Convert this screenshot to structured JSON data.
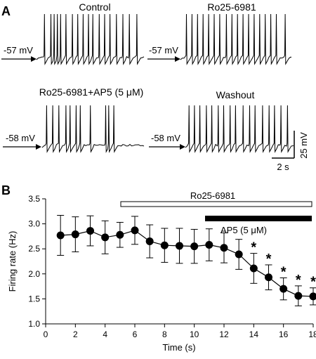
{
  "panel_a": {
    "letter": "A",
    "traces": [
      {
        "title": "Control",
        "resting": "-57 mV",
        "spikes": [
          0.07,
          0.13,
          0.16,
          0.19,
          0.22,
          0.27,
          0.33,
          0.38,
          0.43,
          0.48,
          0.52,
          0.58,
          0.63,
          0.68,
          0.74,
          0.8,
          0.86,
          0.93
        ]
      },
      {
        "title": "Ro25-6981",
        "resting": "-57 mV",
        "spikes": [
          0.05,
          0.1,
          0.15,
          0.2,
          0.25,
          0.3,
          0.35,
          0.41,
          0.46,
          0.51,
          0.56,
          0.61,
          0.66,
          0.71,
          0.76,
          0.81,
          0.86,
          0.94
        ]
      },
      {
        "title": "Ro25-6981+AP5 (5 μM)",
        "resting": "-58 mV",
        "spikes": [
          0.04,
          0.1,
          0.16,
          0.23,
          0.27,
          0.33,
          0.37,
          0.47,
          0.62,
          0.65,
          0.7
        ]
      },
      {
        "title": "Washout",
        "resting": "-58 mV",
        "spikes": [
          0.03,
          0.08,
          0.13,
          0.19,
          0.24,
          0.3,
          0.35,
          0.41,
          0.46,
          0.53,
          0.59,
          0.64,
          0.71,
          0.77,
          0.82,
          0.88,
          0.94
        ]
      }
    ],
    "scale_time": "2 s",
    "scale_voltage": "25 mV"
  },
  "panel_b": {
    "letter": "B",
    "bar_ro": "Ro25-6981",
    "bar_ap5": "AP5 (5 μM)",
    "xticks": [
      "0",
      "2",
      "4",
      "6",
      "8",
      "10",
      "12",
      "14",
      "16",
      "18"
    ],
    "yticks": [
      "1.0",
      "1.5",
      "2.0",
      "2.5",
      "3.0",
      "3.5"
    ],
    "star": "*"
  },
  "chart_data": {
    "type": "line",
    "xlabel": "Time (s)",
    "ylabel": "Firing rate (Hz)",
    "xlim": [
      0,
      18
    ],
    "ylim": [
      1.0,
      3.5
    ],
    "grid": false,
    "x": [
      1,
      2,
      3,
      4,
      5,
      6,
      7,
      8,
      9,
      10,
      11,
      12,
      13,
      14,
      15,
      16,
      17,
      18
    ],
    "y": [
      2.77,
      2.79,
      2.86,
      2.73,
      2.78,
      2.87,
      2.65,
      2.57,
      2.56,
      2.55,
      2.58,
      2.52,
      2.39,
      2.11,
      1.93,
      1.7,
      1.56,
      1.55
    ],
    "error": [
      0.4,
      0.35,
      0.3,
      0.33,
      0.25,
      0.28,
      0.33,
      0.34,
      0.35,
      0.34,
      0.32,
      0.3,
      0.3,
      0.3,
      0.25,
      0.22,
      0.2,
      0.17
    ],
    "significant": [
      false,
      false,
      false,
      false,
      false,
      false,
      false,
      false,
      false,
      false,
      false,
      false,
      false,
      true,
      true,
      true,
      true,
      true
    ],
    "drug_bars": [
      {
        "label": "Ro25-6981",
        "start": 5,
        "end": 18,
        "style": "open"
      },
      {
        "label": "AP5 (5 μM)",
        "start": 11,
        "end": 18,
        "style": "filled"
      }
    ]
  }
}
